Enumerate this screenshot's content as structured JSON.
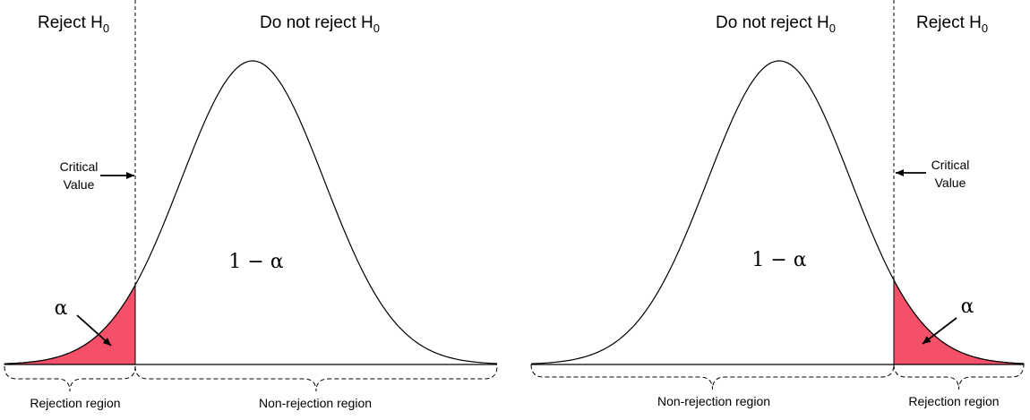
{
  "left": {
    "reject": {
      "text": "Reject H",
      "sub": "0"
    },
    "do_not_reject": {
      "text": "Do not reject H",
      "sub": "0"
    },
    "critical_value": [
      "Critical",
      "Value"
    ],
    "confidence": "1 − α",
    "alpha": "α",
    "rejection_region": "Rejection region",
    "non_rejection_region": "Non-rejection region"
  },
  "right": {
    "do_not_reject": {
      "text": "Do not reject H",
      "sub": "0"
    },
    "reject": {
      "text": "Reject H",
      "sub": "0"
    },
    "critical_value": [
      "Critical",
      "Value"
    ],
    "confidence": "1 − α",
    "alpha": "α",
    "non_rejection_region": "Non-rejection region",
    "rejection_region": "Rejection region"
  }
}
